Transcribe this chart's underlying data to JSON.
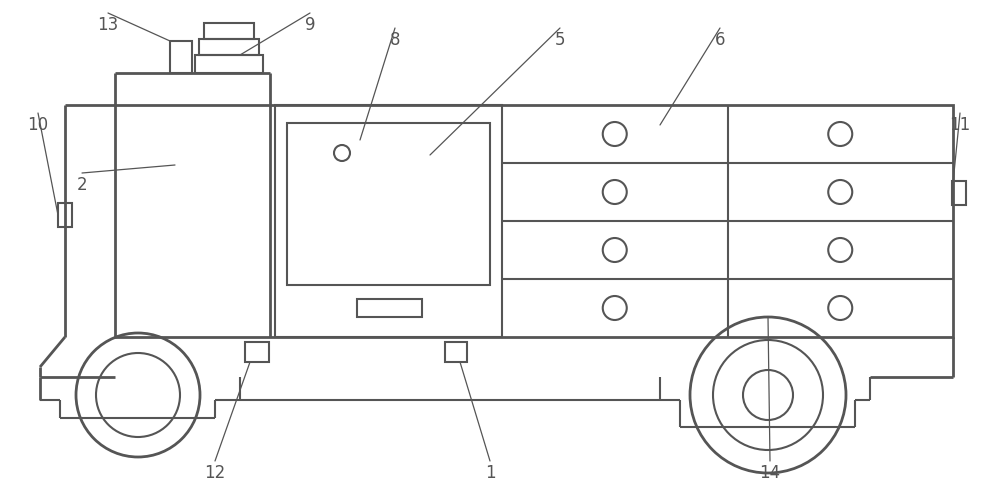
{
  "bg_color": "#ffffff",
  "line_color": "#555555",
  "lw": 1.5,
  "tlw": 2.0
}
